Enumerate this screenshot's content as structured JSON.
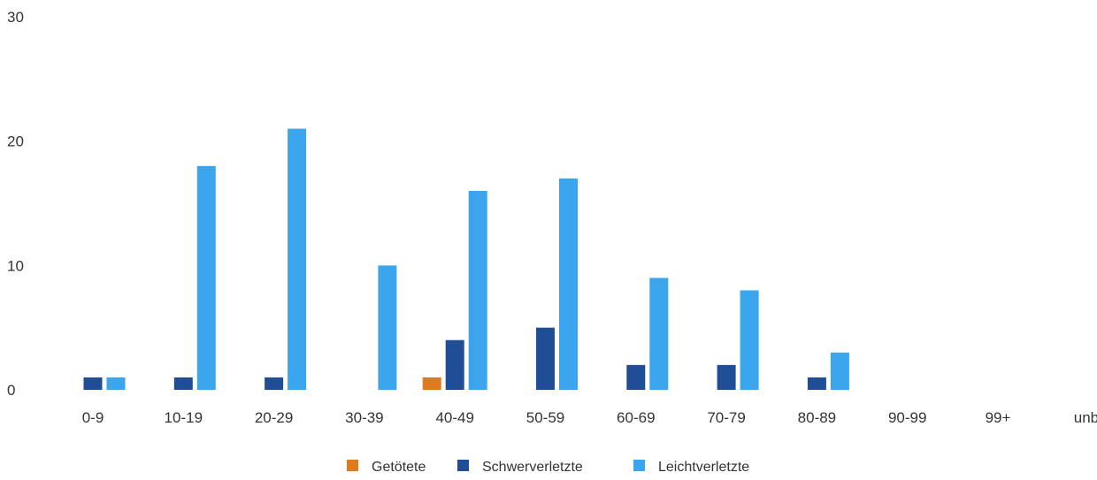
{
  "chart_data": {
    "type": "bar",
    "title": "",
    "xlabel": "",
    "ylabel": "",
    "ylim": [
      0,
      30
    ],
    "yticks": [
      0,
      10,
      20,
      30
    ],
    "grid": false,
    "legend_position": "bottom-center",
    "categories": [
      "0-9",
      "10-19",
      "20-29",
      "30-39",
      "40-49",
      "50-59",
      "60-69",
      "70-79",
      "80-89",
      "90-99",
      "99+",
      "unb."
    ],
    "series": [
      {
        "name": "Getötete",
        "color": "#e07a1f",
        "values": [
          0,
          0,
          0,
          0,
          1,
          0,
          0,
          0,
          0,
          0,
          0,
          0
        ]
      },
      {
        "name": "Schwerverletzte",
        "color": "#1f4e96",
        "values": [
          1,
          1,
          1,
          0,
          4,
          5,
          2,
          2,
          1,
          0,
          0,
          0
        ]
      },
      {
        "name": "Leichtverletzte",
        "color": "#3ba6ee",
        "values": [
          1,
          18,
          21,
          10,
          16,
          17,
          9,
          8,
          3,
          0,
          0,
          0
        ]
      }
    ]
  }
}
